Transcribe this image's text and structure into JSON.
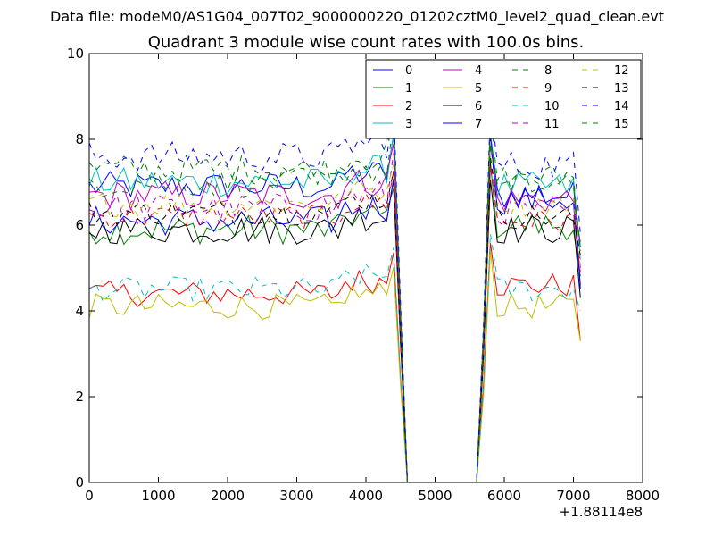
{
  "suptitle": "Data file: modeM0/AS1G04_007T02_9000000220_01202cztM0_level2_quad_clean.evt",
  "chart_data": {
    "type": "line",
    "title": "Quadrant 3 module wise count rates with 100.0s bins.",
    "xlabel": "",
    "ylabel": "",
    "x_offset_label": "+1.88114e8",
    "xlim": [
      0,
      8000
    ],
    "ylim": [
      0,
      10
    ],
    "x_ticks": [
      "0",
      "1000",
      "2000",
      "3000",
      "4000",
      "5000",
      "6000",
      "7000",
      "8000"
    ],
    "y_ticks": [
      "0",
      "2",
      "4",
      "6",
      "8",
      "10"
    ],
    "grid": false,
    "legend_position": "top-right",
    "legend_columns": 4,
    "x": {
      "start": 0,
      "step": 100,
      "count": 72
    },
    "series": [
      {
        "name": "0",
        "color": "#0000ff",
        "dashed": false,
        "pre": 6.9,
        "post": 6.7,
        "amp": 0.35,
        "final": 4.5
      },
      {
        "name": "1",
        "color": "#008000",
        "dashed": false,
        "pre": 5.9,
        "post": 6.0,
        "amp": 0.35,
        "final": 4.8
      },
      {
        "name": "2",
        "color": "#ff0000",
        "dashed": false,
        "pre": 4.4,
        "post": 4.6,
        "amp": 0.3,
        "final": 3.3
      },
      {
        "name": "3",
        "color": "#00bfbf",
        "dashed": false,
        "pre": 7.0,
        "post": 6.9,
        "amp": 0.35,
        "final": 5.2
      },
      {
        "name": "4",
        "color": "#bf00bf",
        "dashed": false,
        "pre": 6.7,
        "post": 6.6,
        "amp": 0.35,
        "final": 5.6
      },
      {
        "name": "5",
        "color": "#bfbf00",
        "dashed": false,
        "pre": 4.1,
        "post": 4.1,
        "amp": 0.3,
        "final": 3.3
      },
      {
        "name": "6",
        "color": "#000000",
        "dashed": false,
        "pre": 5.9,
        "post": 5.9,
        "amp": 0.35,
        "final": 4.3
      },
      {
        "name": "7",
        "color": "#0000ff",
        "dashed": false,
        "pre": 6.1,
        "post": 6.6,
        "amp": 0.35,
        "final": 4.6
      },
      {
        "name": "8",
        "color": "#008000",
        "dashed": true,
        "pre": 7.3,
        "post": 7.1,
        "amp": 0.35,
        "final": 5.5
      },
      {
        "name": "9",
        "color": "#ff0000",
        "dashed": true,
        "pre": 6.2,
        "post": 6.1,
        "amp": 0.3,
        "final": 4.9
      },
      {
        "name": "10",
        "color": "#00bfbf",
        "dashed": true,
        "pre": 4.5,
        "post": 4.5,
        "amp": 0.3,
        "final": 4.0
      },
      {
        "name": "11",
        "color": "#bf00bf",
        "dashed": true,
        "pre": 6.4,
        "post": 6.3,
        "amp": 0.35,
        "final": 5.0
      },
      {
        "name": "12",
        "color": "#bfbf00",
        "dashed": true,
        "pre": 6.5,
        "post": 6.5,
        "amp": 0.3,
        "final": 5.1
      },
      {
        "name": "13",
        "color": "#000000",
        "dashed": true,
        "pre": 6.3,
        "post": 6.2,
        "amp": 0.3,
        "final": 5.3
      },
      {
        "name": "14",
        "color": "#0000ff",
        "dashed": true,
        "pre": 7.6,
        "post": 7.4,
        "amp": 0.35,
        "final": 5.8
      },
      {
        "name": "15",
        "color": "#008000",
        "dashed": true,
        "pre": 7.0,
        "post": 6.9,
        "amp": 0.35,
        "final": 5.4
      }
    ],
    "gap_start": 4600,
    "gap_end": 5600
  }
}
